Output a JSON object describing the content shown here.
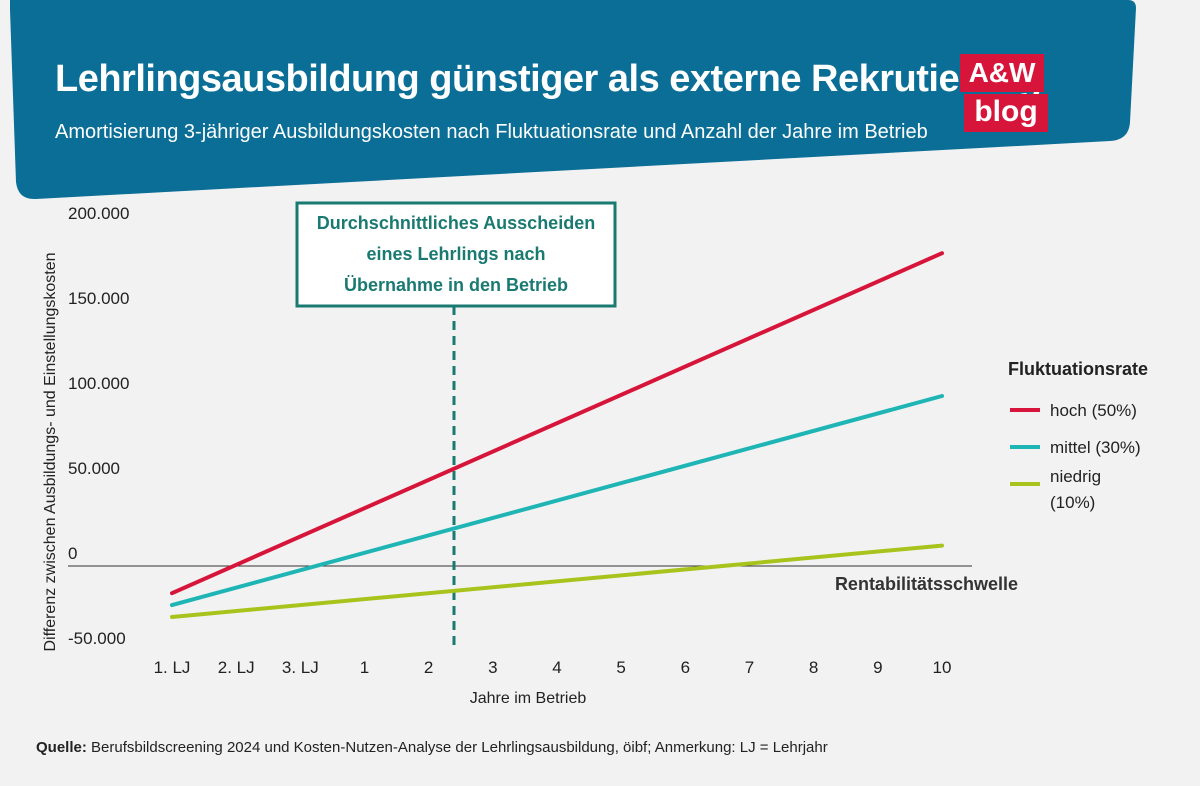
{
  "header": {
    "title": "Lehrlingsausbildung günstiger als externe Rekrutierung",
    "subtitle": "Amortisierung 3-jähriger Ausbildungskosten nach Fluktuationsrate und Anzahl der Jahre im Betrieb"
  },
  "logo": {
    "line1": "A&W",
    "line2": "blog"
  },
  "colors": {
    "header_bg": "#0a6e96",
    "high": "#d7153a",
    "medium": "#1fb5b5",
    "low": "#a8c41c",
    "annotation": "#1a7a72",
    "background": "#f2f2f2"
  },
  "chart_data": {
    "type": "line",
    "ylabel": "Differenz zwischen Ausbildungs- und Einstellungskosten",
    "xlabel": "Jahre im Betrieb",
    "categories": [
      "1. LJ",
      "2. LJ",
      "3. LJ",
      "1",
      "2",
      "3",
      "4",
      "5",
      "6",
      "7",
      "8",
      "9",
      "10"
    ],
    "y_ticks": [
      "200.000",
      "150.000",
      "100.000",
      "50.000",
      "0",
      "-50.000"
    ],
    "y_tick_values": [
      200000,
      150000,
      100000,
      50000,
      0,
      -50000
    ],
    "ylim": [
      -50000,
      200000
    ],
    "series": [
      {
        "name": "hoch (50%)",
        "color": "#d7153a",
        "start": -16000,
        "end": 184000
      },
      {
        "name": "mittel (30%)",
        "color": "#1fb5b5",
        "start": -23000,
        "end": 100000
      },
      {
        "name": "niedrig (10%)",
        "color": "#a8c41c",
        "start": -30000,
        "end": 12000
      }
    ],
    "legend": {
      "title": "Fluktuationsrate",
      "placement": "right"
    },
    "annotation": {
      "lines": [
        "Durchschnittliches Ausscheiden",
        "eines Lehrlings nach",
        "Übernahme in den Betrieb"
      ],
      "x_value": "2.5 Jahre im Betrieb"
    },
    "threshold_label": "Rentabilitätsschwelle",
    "grid": false
  },
  "source": {
    "label": "Quelle:",
    "text": "Berufsbildscreening 2024 und Kosten-Nutzen-Analyse der Lehrlingsausbildung, öibf; Anmerkung: LJ = Lehrjahr"
  }
}
